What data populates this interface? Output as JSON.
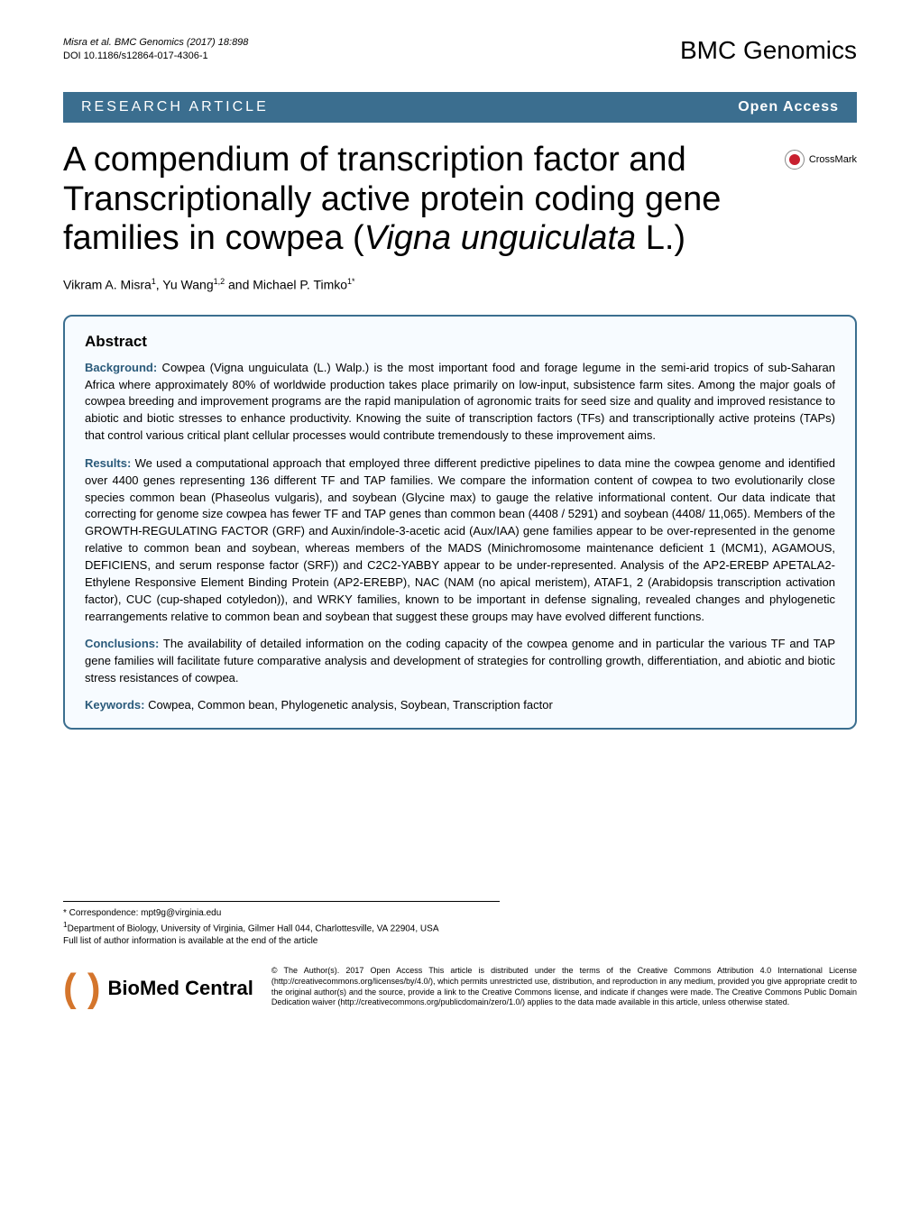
{
  "header": {
    "citation": "Misra et al. BMC Genomics (2017) 18:898",
    "doi": "DOI 10.1186/s12864-017-4306-1",
    "journal": "BMC Genomics"
  },
  "banner": {
    "left": "RESEARCH ARTICLE",
    "right": "Open Access"
  },
  "crossmark": "CrossMark",
  "title_parts": {
    "p1": "A compendium of transcription factor and Transcriptionally active protein coding gene families in cowpea (",
    "p2": "Vigna unguiculata",
    "p3": " L.)"
  },
  "authors_parts": {
    "a1": "Vikram A. Misra",
    "s1": "1",
    "a2": ", Yu Wang",
    "s2": "1,2",
    "a3": " and Michael P. Timko",
    "s3": "1*"
  },
  "abstract": {
    "title": "Abstract",
    "background_label": "Background:",
    "background": " Cowpea (Vigna unguiculata (L.) Walp.) is the most important food and forage legume in the semi-arid tropics of sub-Saharan Africa where approximately 80% of worldwide production takes place primarily on low-input, subsistence farm sites. Among the major goals of cowpea breeding and improvement programs are the rapid manipulation of agronomic traits for seed size and quality and improved resistance to abiotic and biotic stresses to enhance productivity. Knowing the suite of transcription factors (TFs) and transcriptionally active proteins (TAPs) that control various critical plant cellular processes would contribute tremendously to these improvement aims.",
    "results_label": "Results:",
    "results": " We used a computational approach that employed three different predictive pipelines to data mine the cowpea genome and identified over 4400 genes representing 136 different TF and TAP families. We compare the information content of cowpea to two evolutionarily close species common bean (Phaseolus vulgaris), and soybean (Glycine max) to gauge the relative informational content. Our data indicate that correcting for genome size cowpea has fewer TF and TAP genes than common bean (4408 / 5291) and soybean (4408/ 11,065). Members of the GROWTH-REGULATING FACTOR (GRF) and Auxin/indole-3-acetic acid (Aux/IAA) gene families appear to be over-represented in the genome relative to common bean and soybean, whereas members of the MADS (Minichromosome maintenance deficient 1 (MCM1), AGAMOUS, DEFICIENS, and serum response factor (SRF)) and C2C2-YABBY appear to be under-represented. Analysis of the AP2-EREBP APETALA2-Ethylene Responsive Element Binding Protein (AP2-EREBP), NAC (NAM (no apical meristem), ATAF1, 2 (Arabidopsis transcription activation factor), CUC (cup-shaped cotyledon)), and WRKY families, known to be important in defense signaling, revealed changes and phylogenetic rearrangements relative to common bean and soybean that suggest these groups may have evolved different functions.",
    "conclusions_label": "Conclusions:",
    "conclusions": " The availability of detailed information on the coding capacity of the cowpea genome and in particular the various TF and TAP gene families will facilitate future comparative analysis and development of strategies for controlling growth, differentiation, and abiotic and biotic stress resistances of cowpea.",
    "keywords_label": "Keywords:",
    "keywords": " Cowpea, Common bean, Phylogenetic analysis, Soybean, Transcription factor"
  },
  "correspondence": {
    "line1": "* Correspondence: mpt9g@virginia.edu",
    "line2": "Department of Biology, University of Virginia, Gilmer Hall 044, Charlottesville, VA 22904, USA",
    "line3": "Full list of author information is available at the end of the article"
  },
  "footer": {
    "logo_text": "BioMed Central",
    "license_bold": "Open Access",
    "license": "© The Author(s). 2017 Open Access This article is distributed under the terms of the Creative Commons Attribution 4.0 International License (http://creativecommons.org/licenses/by/4.0/), which permits unrestricted use, distribution, and reproduction in any medium, provided you give appropriate credit to the original author(s) and the source, provide a link to the Creative Commons license, and indicate if changes were made. The Creative Commons Public Domain Dedication waiver (http://creativecommons.org/publicdomain/zero/1.0/) applies to the data made available in this article, unless otherwise stated."
  }
}
